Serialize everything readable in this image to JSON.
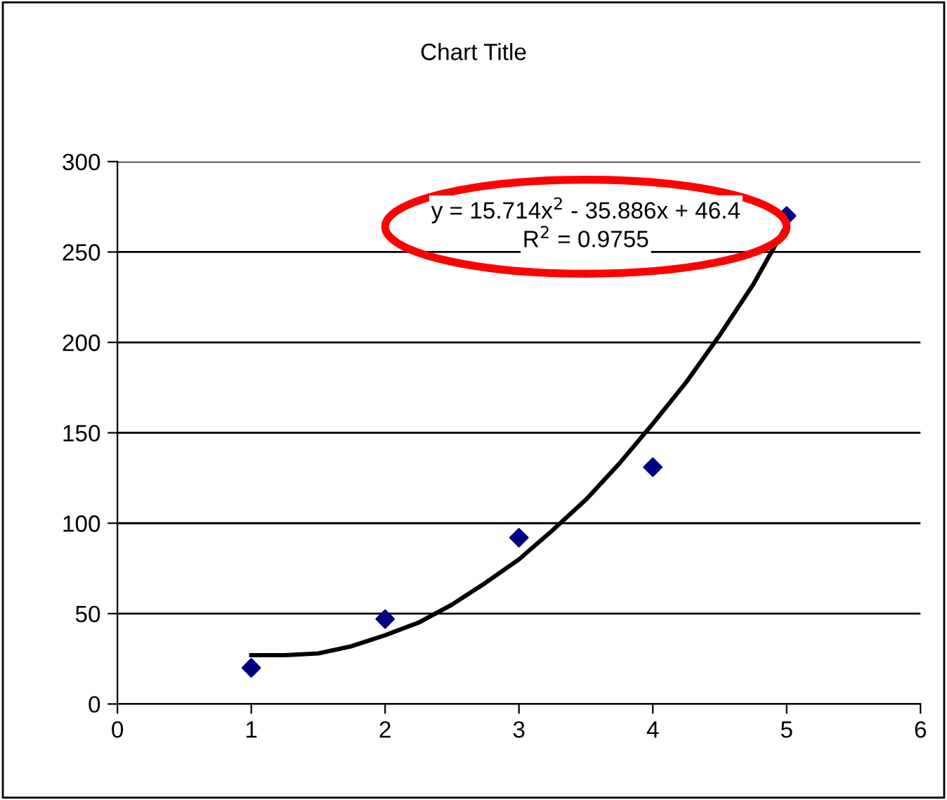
{
  "chart_data": {
    "type": "scatter",
    "title": "Chart Title",
    "xlim": [
      0,
      6
    ],
    "xticks": [
      0,
      1,
      2,
      3,
      4,
      5,
      6
    ],
    "ylim": [
      0,
      300
    ],
    "yticks": [
      0,
      50,
      100,
      150,
      200,
      250,
      300
    ],
    "grid": "y",
    "marker": "diamond",
    "series": [
      {
        "color": "#000080",
        "x": [
          1,
          2,
          3,
          4,
          5
        ],
        "values": [
          20,
          47,
          92,
          131,
          270
        ]
      },
      {
        "type": "line",
        "color": "#000000",
        "line_style": "solid",
        "marker": "none",
        "x": [
          1,
          1.25,
          1.5,
          1.75,
          2,
          2.25,
          2.5,
          2.75,
          3,
          3.25,
          3.5,
          3.75,
          4,
          4.25,
          4.5,
          4.75,
          5
        ],
        "values": [
          27,
          27,
          28,
          32,
          38,
          45,
          55,
          67,
          80,
          96,
          113,
          133,
          155,
          178,
          204,
          232,
          265
        ]
      }
    ],
    "annotations": [
      "y = 15.714x$^{2}$ - 35.886x + 46.4",
      "R$^{2}$ = 0.9755"
    ]
  }
}
